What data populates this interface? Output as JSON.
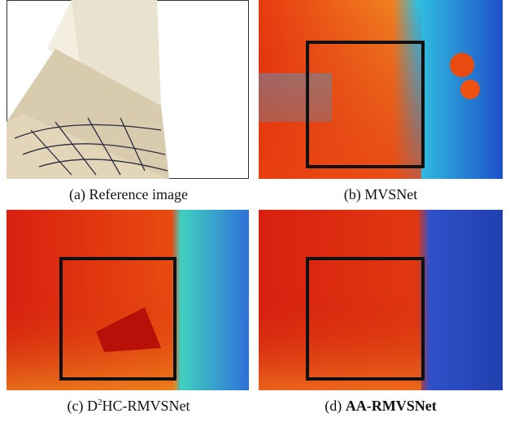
{
  "figure": {
    "panels": [
      {
        "caption": "(a) Reference image"
      },
      {
        "caption": "(b) MVSNet"
      },
      {
        "caption": {
          "label": "(c) D",
          "sup": "2",
          "rest": "HC-RMVSNet"
        }
      },
      {
        "caption": {
          "label": "(d) ",
          "bold": "AA-RMVSNet"
        }
      }
    ]
  }
}
